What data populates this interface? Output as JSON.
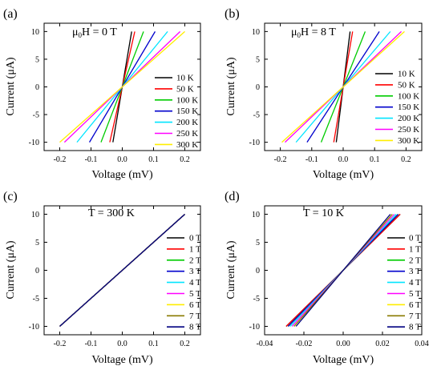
{
  "colors": {
    "black": "#000000",
    "red": "#ff0000",
    "green": "#00cc00",
    "blue": "#0000cc",
    "cyan": "#00e5ff",
    "magenta": "#ff00ff",
    "yellow": "#ffee00",
    "olive": "#8a7a00",
    "navy": "#000080"
  },
  "chart_data": [
    {
      "panel_label": "(a)",
      "annotation": {
        "main": "μ",
        "sub1": "0",
        "mid": "H = 0 T"
      },
      "type": "line",
      "xlabel": "Voltage  (mV)",
      "ylabel": "Current  (μA)",
      "xlim": [
        -0.25,
        0.25
      ],
      "ylim": [
        -11.5,
        11.5
      ],
      "xticks": [
        -0.2,
        -0.1,
        0.0,
        0.1,
        0.2
      ],
      "xtick_labels": [
        "-0.2",
        "-0.1",
        "0.0",
        "0.1",
        "0.2"
      ],
      "yticks": [
        -10,
        -5,
        0,
        5,
        10
      ],
      "ytick_labels": [
        "-10",
        "-5",
        "0",
        "5",
        "10"
      ],
      "legend_position": "lower-right",
      "series": [
        {
          "name": "10 K",
          "color": "#000000",
          "x": [
            -0.03,
            0.03
          ],
          "y": [
            -10,
            10
          ]
        },
        {
          "name": "50 K",
          "color": "#ff0000",
          "x": [
            -0.04,
            0.04
          ],
          "y": [
            -10,
            10
          ]
        },
        {
          "name": "100 K",
          "color": "#00cc00",
          "x": [
            -0.068,
            0.068
          ],
          "y": [
            -10,
            10
          ]
        },
        {
          "name": "150 K",
          "color": "#0000cc",
          "x": [
            -0.105,
            0.105
          ],
          "y": [
            -10,
            10
          ]
        },
        {
          "name": "200 K",
          "color": "#00e5ff",
          "x": [
            -0.145,
            0.145
          ],
          "y": [
            -10,
            10
          ]
        },
        {
          "name": "250 K",
          "color": "#ff00ff",
          "x": [
            -0.185,
            0.185
          ],
          "y": [
            -10,
            10
          ]
        },
        {
          "name": "300 K",
          "color": "#ffee00",
          "x": [
            -0.2,
            0.2
          ],
          "y": [
            -10,
            10
          ]
        }
      ]
    },
    {
      "panel_label": "(b)",
      "annotation": {
        "main": "μ",
        "sub1": "0",
        "mid": "H = 8 T"
      },
      "type": "line",
      "xlabel": "Voltage  (mV)",
      "ylabel": "Current  (μA)",
      "xlim": [
        -0.25,
        0.25
      ],
      "ylim": [
        -11.5,
        11.5
      ],
      "xticks": [
        -0.2,
        -0.1,
        0.0,
        0.1,
        0.2
      ],
      "xtick_labels": [
        "-0.2",
        "-0.1",
        "0.0",
        "0.1",
        "0.2"
      ],
      "yticks": [
        -10,
        -5,
        0,
        5,
        10
      ],
      "ytick_labels": [
        "-10",
        "-5",
        "0",
        "5",
        "10"
      ],
      "legend_position": "lower-right",
      "series": [
        {
          "name": "10 K",
          "color": "#000000",
          "x": [
            -0.022,
            0.022
          ],
          "y": [
            -10,
            10
          ]
        },
        {
          "name": "50 K",
          "color": "#ff0000",
          "x": [
            -0.03,
            0.03
          ],
          "y": [
            -10,
            10
          ]
        },
        {
          "name": "100 K",
          "color": "#00cc00",
          "x": [
            -0.07,
            0.07
          ],
          "y": [
            -10,
            10
          ]
        },
        {
          "name": "150 K",
          "color": "#0000cc",
          "x": [
            -0.115,
            0.115
          ],
          "y": [
            -10,
            10
          ]
        },
        {
          "name": "200 K",
          "color": "#00e5ff",
          "x": [
            -0.15,
            0.15
          ],
          "y": [
            -10,
            10
          ]
        },
        {
          "name": "250 K",
          "color": "#ff00ff",
          "x": [
            -0.185,
            0.185
          ],
          "y": [
            -10,
            10
          ]
        },
        {
          "name": "300 K",
          "color": "#ffee00",
          "x": [
            -0.195,
            0.195
          ],
          "y": [
            -10,
            10
          ]
        }
      ]
    },
    {
      "panel_label": "(c)",
      "annotation": {
        "main": "T = 300 K"
      },
      "type": "line",
      "xlabel": "Voltage  (mV)",
      "ylabel": "Current  (μA)",
      "xlim": [
        -0.25,
        0.25
      ],
      "ylim": [
        -11.5,
        11.5
      ],
      "xticks": [
        -0.2,
        -0.1,
        0.0,
        0.1,
        0.2
      ],
      "xtick_labels": [
        "-0.2",
        "-0.1",
        "0.0",
        "0.1",
        "0.2"
      ],
      "yticks": [
        -10,
        -5,
        0,
        5,
        10
      ],
      "ytick_labels": [
        "-10",
        "-5",
        "0",
        "5",
        "10"
      ],
      "legend_position": "lower-right",
      "series": [
        {
          "name": "0 T",
          "color": "#000000",
          "x": [
            -0.2,
            0.2
          ],
          "y": [
            -10,
            10
          ]
        },
        {
          "name": "1 T",
          "color": "#ff0000",
          "x": [
            -0.2,
            0.2
          ],
          "y": [
            -10,
            10
          ]
        },
        {
          "name": "2 T",
          "color": "#00cc00",
          "x": [
            -0.2,
            0.2
          ],
          "y": [
            -10,
            10
          ]
        },
        {
          "name": "3 T",
          "color": "#0000cc",
          "x": [
            -0.2,
            0.2
          ],
          "y": [
            -10,
            10
          ]
        },
        {
          "name": "4 T",
          "color": "#00e5ff",
          "x": [
            -0.2,
            0.2
          ],
          "y": [
            -10,
            10
          ]
        },
        {
          "name": "5 T",
          "color": "#ff00ff",
          "x": [
            -0.2,
            0.2
          ],
          "y": [
            -10,
            10
          ]
        },
        {
          "name": "6 T",
          "color": "#ffee00",
          "x": [
            -0.2,
            0.2
          ],
          "y": [
            -10,
            10
          ]
        },
        {
          "name": "7 T",
          "color": "#8a7a00",
          "x": [
            -0.2,
            0.2
          ],
          "y": [
            -10,
            10
          ]
        },
        {
          "name": "8 T",
          "color": "#000080",
          "x": [
            -0.2,
            0.2
          ],
          "y": [
            -10,
            10
          ]
        }
      ]
    },
    {
      "panel_label": "(d)",
      "annotation": {
        "main": "T = 10 K"
      },
      "type": "line",
      "xlabel": "Voltage  (mV)",
      "ylabel": "Current  (μA)",
      "xlim": [
        -0.04,
        0.04
      ],
      "ylim": [
        -11.5,
        11.5
      ],
      "xticks": [
        -0.04,
        -0.02,
        0.0,
        0.02,
        0.04
      ],
      "xtick_labels": [
        "-0.04",
        "-0.02",
        "0.00",
        "0.02",
        "0.04"
      ],
      "yticks": [
        -10,
        -5,
        0,
        5,
        10
      ],
      "ytick_labels": [
        "-10",
        "-5",
        "0",
        "5",
        "10"
      ],
      "legend_position": "lower-right",
      "series": [
        {
          "name": "0 T",
          "color": "#000000",
          "x": [
            -0.029,
            0.029
          ],
          "y": [
            -10,
            10
          ]
        },
        {
          "name": "1 T",
          "color": "#ff0000",
          "x": [
            -0.029,
            0.029
          ],
          "y": [
            -10,
            10
          ]
        },
        {
          "name": "2 T",
          "color": "#00cc00",
          "x": [
            -0.028,
            0.028
          ],
          "y": [
            -10,
            10
          ]
        },
        {
          "name": "3 T",
          "color": "#0000cc",
          "x": [
            -0.028,
            0.028
          ],
          "y": [
            -10,
            10
          ]
        },
        {
          "name": "4 T",
          "color": "#00e5ff",
          "x": [
            -0.027,
            0.027
          ],
          "y": [
            -10,
            10
          ]
        },
        {
          "name": "5 T",
          "color": "#ff00ff",
          "x": [
            -0.026,
            0.026
          ],
          "y": [
            -10,
            10
          ]
        },
        {
          "name": "6 T",
          "color": "#ffee00",
          "x": [
            -0.025,
            0.025
          ],
          "y": [
            -10,
            10
          ]
        },
        {
          "name": "7 T",
          "color": "#8a7a00",
          "x": [
            -0.025,
            0.025
          ],
          "y": [
            -10,
            10
          ]
        },
        {
          "name": "8 T",
          "color": "#000080",
          "x": [
            -0.024,
            0.024
          ],
          "y": [
            -10,
            10
          ]
        }
      ]
    }
  ]
}
